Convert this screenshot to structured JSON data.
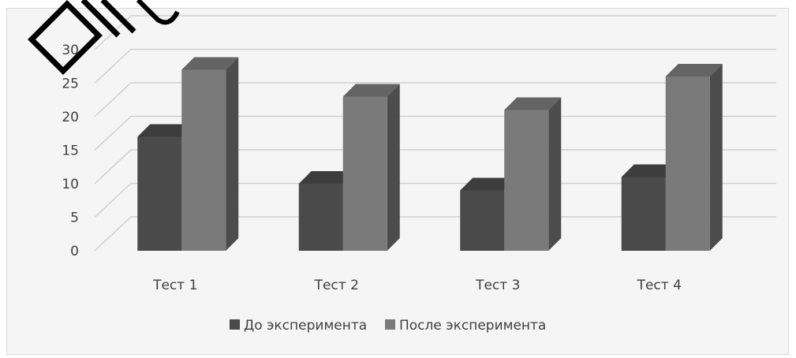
{
  "chart_data": {
    "type": "bar",
    "title": "",
    "xlabel": "",
    "ylabel": "",
    "categories": [
      "Тест 1",
      "Тест 2",
      "Тест 3",
      "Тест 4"
    ],
    "y_ticks": [
      0,
      5,
      10,
      15,
      20,
      25,
      30
    ],
    "ylim": [
      0,
      30
    ],
    "series": [
      {
        "name": "До эксперимента",
        "values": [
          17,
          10,
          9,
          11
        ],
        "color": "#4a4a4a"
      },
      {
        "name": "После эксперимента",
        "values": [
          27,
          23,
          21,
          26
        ],
        "color": "#7a7a7a"
      }
    ],
    "grid": true,
    "legend_position": "bottom",
    "style": "3d-clustered-column",
    "background": "#f5f5f5"
  }
}
